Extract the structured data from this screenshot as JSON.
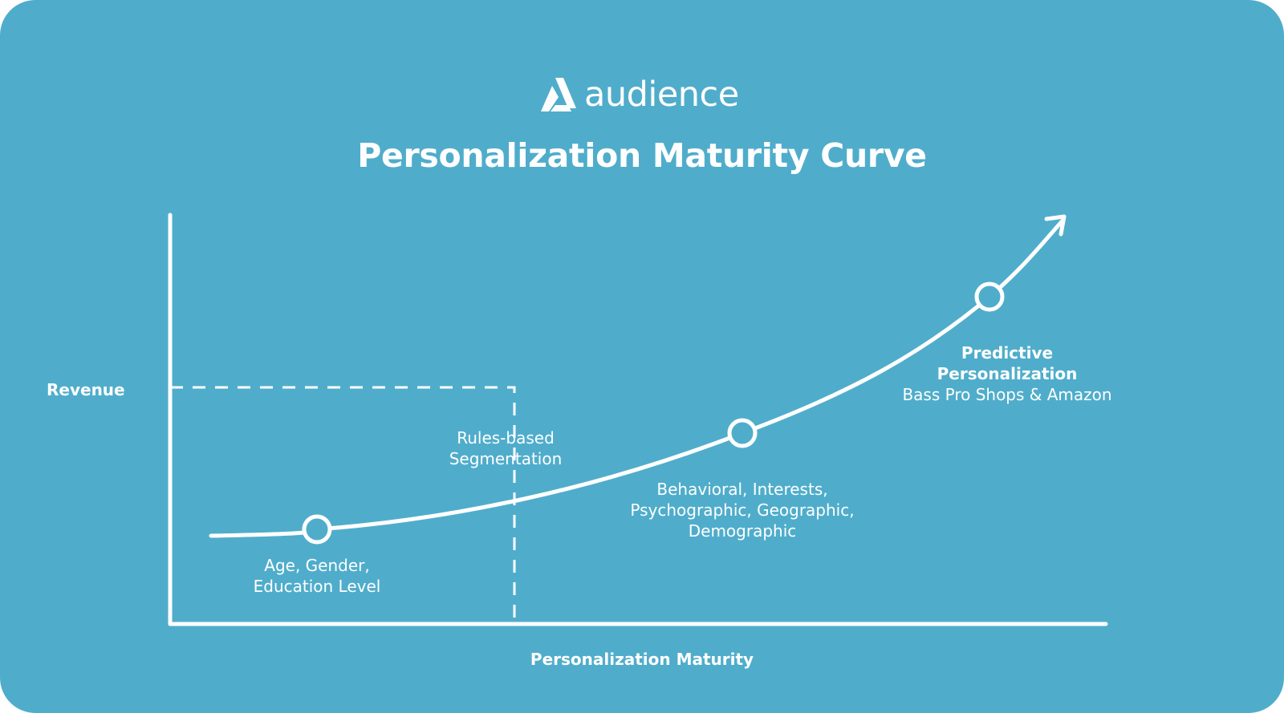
{
  "brand": {
    "name": "audience",
    "icon": "audience-logo-icon"
  },
  "title": "Personalization Maturity Curve",
  "axes": {
    "y_label": "Revenue",
    "x_label": "Personalization Maturity"
  },
  "stages": [
    {
      "lines": [
        "Age, Gender,",
        "Education Level"
      ],
      "bold": false
    },
    {
      "lines": [
        "Behavioral, Interests,",
        "Psychographic, Geographic,",
        "Demographic"
      ],
      "bold": false
    },
    {
      "lines": [
        "Predictive",
        "Personalization"
      ],
      "bold": true,
      "sub": "Bass Pro Shops & Amazon"
    }
  ],
  "threshold": {
    "lines": [
      "Rules-based",
      "Segmentation"
    ]
  },
  "colors": {
    "background": "#4fadcb",
    "foreground": "#ffffff"
  }
}
